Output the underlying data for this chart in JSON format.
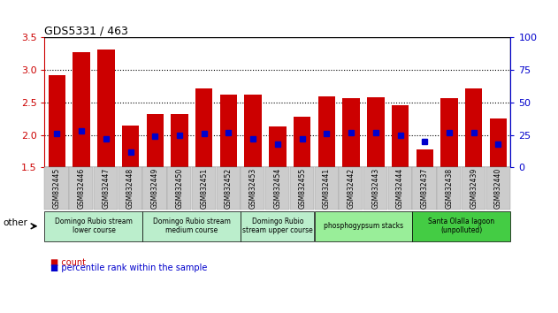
{
  "title": "GDS5331 / 463",
  "samples": [
    "GSM832445",
    "GSM832446",
    "GSM832447",
    "GSM832448",
    "GSM832449",
    "GSM832450",
    "GSM832451",
    "GSM832452",
    "GSM832453",
    "GSM832454",
    "GSM832455",
    "GSM832441",
    "GSM832442",
    "GSM832443",
    "GSM832444",
    "GSM832437",
    "GSM832438",
    "GSM832439",
    "GSM832440"
  ],
  "count_values": [
    2.92,
    3.27,
    3.32,
    2.15,
    2.32,
    2.32,
    2.72,
    2.62,
    2.62,
    2.13,
    2.28,
    2.6,
    2.57,
    2.58,
    2.46,
    1.78,
    2.57,
    2.72,
    2.25
  ],
  "percentile_values": [
    26,
    28,
    22,
    12,
    24,
    25,
    26,
    27,
    22,
    18,
    22,
    26,
    27,
    27,
    25,
    20,
    27,
    27,
    18
  ],
  "ymin": 1.5,
  "ymax": 3.5,
  "y2min": 0,
  "y2max": 100,
  "yticks": [
    1.5,
    2.0,
    2.5,
    3.0,
    3.5
  ],
  "y2ticks": [
    0,
    25,
    50,
    75,
    100
  ],
  "bar_color": "#cc0000",
  "dot_color": "#0000cc",
  "bar_width": 0.7,
  "groups": [
    {
      "label": "Domingo Rubio stream\nlower course",
      "start": 0,
      "end": 4,
      "color": "#bbeecc"
    },
    {
      "label": "Domingo Rubio stream\nmedium course",
      "start": 4,
      "end": 8,
      "color": "#bbeecc"
    },
    {
      "label": "Domingo Rubio\nstream upper course",
      "start": 8,
      "end": 11,
      "color": "#bbeecc"
    },
    {
      "label": "phosphogypsum stacks",
      "start": 11,
      "end": 15,
      "color": "#99ee99"
    },
    {
      "label": "Santa Olalla lagoon\n(unpolluted)",
      "start": 15,
      "end": 19,
      "color": "#44cc44"
    }
  ],
  "legend_count_label": "count",
  "legend_pct_label": "percentile rank within the sample",
  "yaxis_color": "#cc0000",
  "y2axis_color": "#0000cc",
  "grid_color": "#555555",
  "ticklabel_bg": "#cccccc",
  "top_border_color": "black",
  "bottom_border_color": "black"
}
